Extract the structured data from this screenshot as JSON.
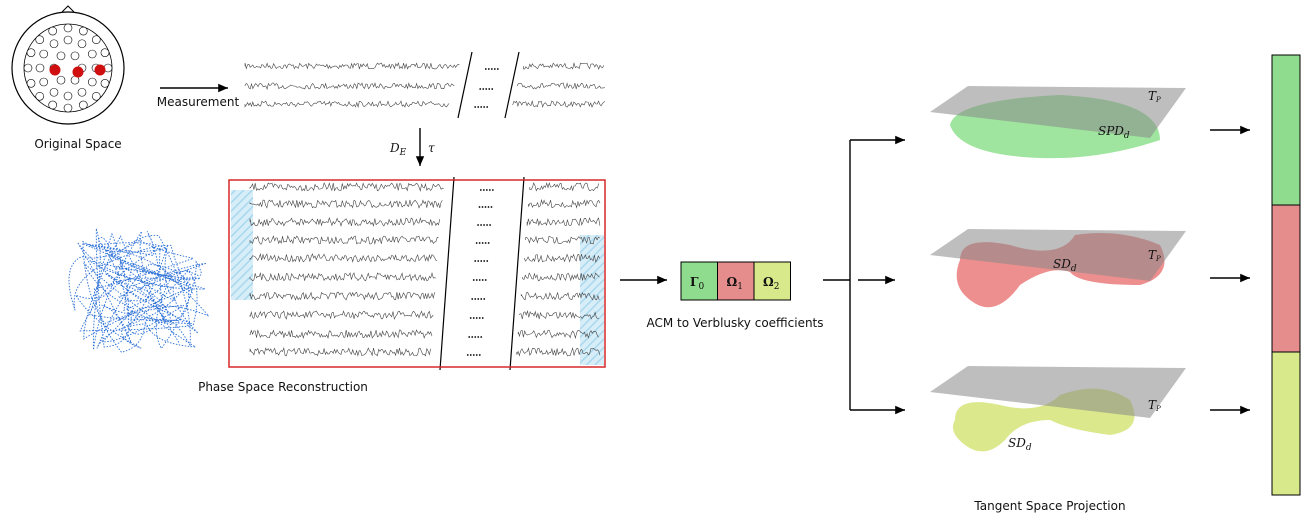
{
  "original_space": {
    "label": "Original Space"
  },
  "measurement": {
    "label": "Measurement"
  },
  "embedding": {
    "dimension": {
      "symbol": "D",
      "sub": "E"
    },
    "delay": "τ"
  },
  "phase_space": {
    "label": "Phase Space Reconstruction"
  },
  "coefficients": {
    "cells": [
      {
        "symbol": "Γ",
        "sub": "0"
      },
      {
        "symbol": "Ω",
        "sub": "1"
      },
      {
        "symbol": "Ω",
        "sub": "2"
      }
    ],
    "label": "ACM to Verblusky coefficients"
  },
  "tangent": {
    "manifolds": [
      {
        "name": {
          "symbol": "SPD",
          "sub": "d"
        },
        "plane": {
          "symbol": "T",
          "sub": "P"
        }
      },
      {
        "name": {
          "symbol": "SD",
          "sub": "d"
        },
        "plane": {
          "symbol": "T",
          "sub": "P"
        }
      },
      {
        "name": {
          "symbol": "SD",
          "sub": "d"
        },
        "plane": {
          "symbol": "T",
          "sub": "P"
        }
      }
    ],
    "label": "Tangent Space Projection"
  }
}
